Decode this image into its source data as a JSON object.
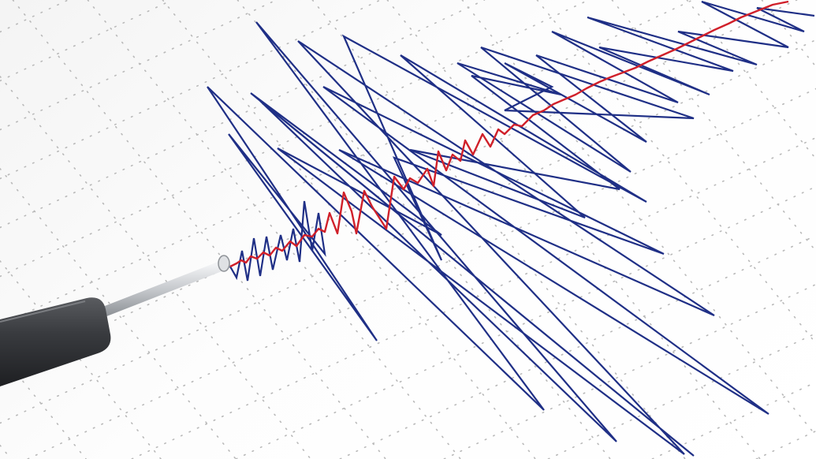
{
  "scene": {
    "subject": "seismograph",
    "colors": {
      "paper": "#fbfbfb",
      "grid_dots": "#b9b9b9",
      "trace_blue": "#1f2f86",
      "trace_red": "#d0202a",
      "pen_body": "#3a3c40",
      "pen_rod": "#c9ccd0"
    },
    "icons": [
      "seismograph-pen-icon"
    ]
  }
}
